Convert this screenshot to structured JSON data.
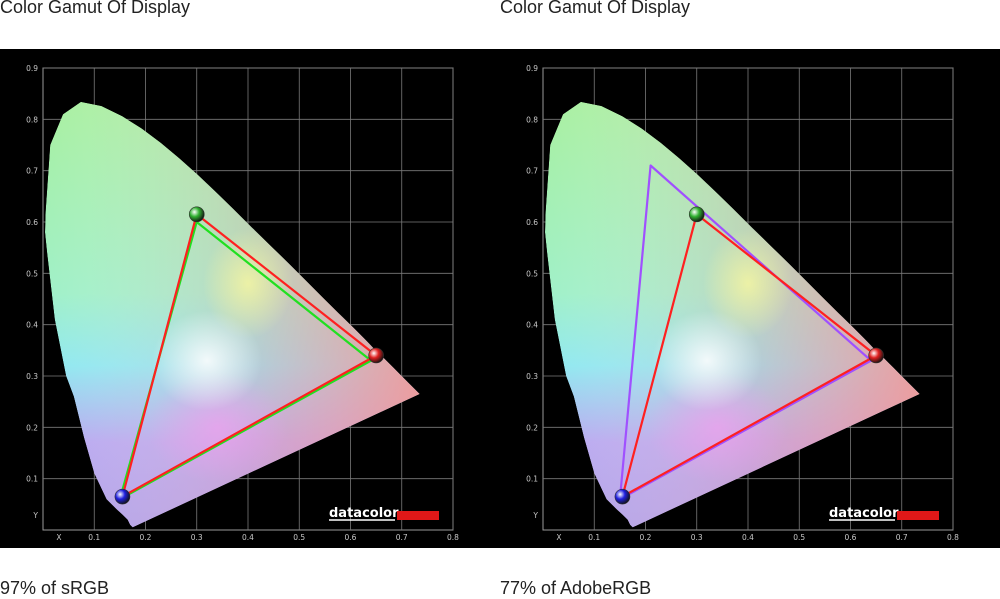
{
  "panels": [
    {
      "title": "Color Gamut Of Display",
      "caption": "97% of sRGB"
    },
    {
      "title": "Color Gamut Of Display",
      "caption": "77% of AdobeRGB"
    }
  ],
  "chart_data": [
    {
      "type": "scatter",
      "title": "Color Gamut Of Display",
      "xlabel": "X",
      "ylabel": "Y",
      "xlim": [
        0,
        0.8
      ],
      "ylim": [
        0,
        0.9
      ],
      "xticks": [
        "X",
        "0.1",
        "0.2",
        "0.3",
        "0.4",
        "0.5",
        "0.6",
        "0.7",
        "0.8"
      ],
      "yticks": [
        "Y",
        "0.1",
        "0.2",
        "0.3",
        "0.4",
        "0.5",
        "0.6",
        "0.7",
        "0.8",
        "0.9"
      ],
      "grid": true,
      "brand_label": "datacolor",
      "brand_color": "#e01818",
      "display_gamut": {
        "color": "#ff2020",
        "points": [
          [
            0.65,
            0.34
          ],
          [
            0.3,
            0.615
          ],
          [
            0.155,
            0.065
          ]
        ]
      },
      "reference_gamut": {
        "color": "#20e020",
        "points": [
          [
            0.64,
            0.33
          ],
          [
            0.3,
            0.6
          ],
          [
            0.15,
            0.06
          ]
        ]
      },
      "markers": [
        {
          "color": "#e02020",
          "x": 0.65,
          "y": 0.34
        },
        {
          "color": "#30b030",
          "x": 0.3,
          "y": 0.615
        },
        {
          "color": "#2020e0",
          "x": 0.155,
          "y": 0.065
        }
      ],
      "coverage": "97% of sRGB"
    },
    {
      "type": "scatter",
      "title": "Color Gamut Of Display",
      "xlabel": "X",
      "ylabel": "Y",
      "xlim": [
        0,
        0.8
      ],
      "ylim": [
        0,
        0.9
      ],
      "xticks": [
        "X",
        "0.1",
        "0.2",
        "0.3",
        "0.4",
        "0.5",
        "0.6",
        "0.7",
        "0.8"
      ],
      "yticks": [
        "Y",
        "0.1",
        "0.2",
        "0.3",
        "0.4",
        "0.5",
        "0.6",
        "0.7",
        "0.8",
        "0.9"
      ],
      "grid": true,
      "brand_label": "datacolor",
      "brand_color": "#e01818",
      "display_gamut": {
        "color": "#ff2020",
        "points": [
          [
            0.65,
            0.34
          ],
          [
            0.3,
            0.615
          ],
          [
            0.155,
            0.065
          ]
        ]
      },
      "reference_gamut": {
        "color": "#a050ff",
        "points": [
          [
            0.64,
            0.33
          ],
          [
            0.21,
            0.71
          ],
          [
            0.15,
            0.06
          ]
        ]
      },
      "markers": [
        {
          "color": "#e02020",
          "x": 0.65,
          "y": 0.34
        },
        {
          "color": "#30b030",
          "x": 0.3,
          "y": 0.615
        },
        {
          "color": "#2020e0",
          "x": 0.155,
          "y": 0.065
        }
      ],
      "coverage": "77% of AdobeRGB"
    }
  ]
}
